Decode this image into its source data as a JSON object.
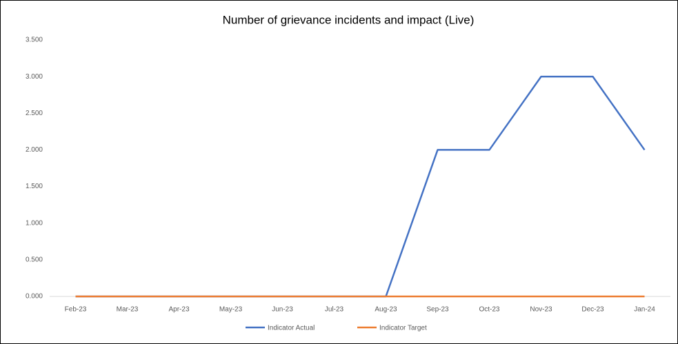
{
  "chart_data": {
    "type": "line",
    "title": "Number of grievance incidents and impact  (Live)",
    "categories": [
      "Feb-23",
      "Mar-23",
      "Apr-23",
      "May-23",
      "Jun-23",
      "Jul-23",
      "Aug-23",
      "Sep-23",
      "Oct-23",
      "Nov-23",
      "Dec-23",
      "Jan-24"
    ],
    "series": [
      {
        "name": "Indicator Actual",
        "color": "#4472c4",
        "values": [
          0,
          0,
          0,
          0,
          0,
          0,
          0,
          2,
          2,
          3,
          3,
          2
        ]
      },
      {
        "name": "Indicator Target",
        "color": "#ed7d31",
        "values": [
          0,
          0,
          0,
          0,
          0,
          0,
          0,
          0,
          0,
          0,
          0,
          0
        ]
      }
    ],
    "ylim": [
      0,
      3.5
    ],
    "yticks": [
      {
        "value": 0,
        "label": "0.000"
      },
      {
        "value": 0.5,
        "label": "0.500"
      },
      {
        "value": 1,
        "label": "1.000"
      },
      {
        "value": 1.5,
        "label": "1.500"
      },
      {
        "value": 2,
        "label": "2.000"
      },
      {
        "value": 2.5,
        "label": "2.500"
      },
      {
        "value": 3,
        "label": "3.000"
      },
      {
        "value": 3.5,
        "label": "3.500"
      }
    ],
    "grid": false,
    "legend": "bottom"
  }
}
